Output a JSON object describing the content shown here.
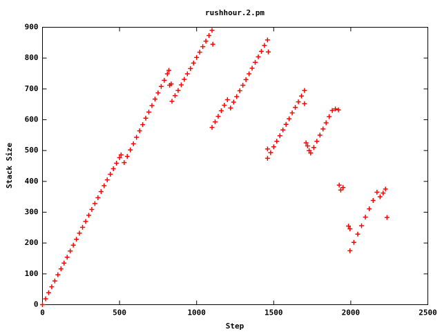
{
  "chart_data": {
    "type": "scatter",
    "title": "rushhour.2.pm",
    "x_label": "Step",
    "y_label": "Stack Size",
    "color": "#ff0000",
    "xlim": [
      0,
      2500
    ],
    "xticks": [
      0,
      500,
      1000,
      1500,
      2000,
      2500
    ],
    "ylim": [
      0,
      900
    ],
    "yticks": [
      0,
      100,
      200,
      300,
      400,
      500,
      600,
      700,
      800,
      900
    ],
    "x": [
      0,
      20,
      40,
      60,
      80,
      100,
      120,
      140,
      160,
      180,
      200,
      220,
      240,
      260,
      280,
      300,
      320,
      340,
      360,
      380,
      400,
      420,
      440,
      460,
      480,
      500,
      510,
      530,
      550,
      570,
      590,
      610,
      630,
      650,
      670,
      690,
      710,
      730,
      750,
      770,
      790,
      810,
      820,
      825,
      835,
      840,
      860,
      880,
      900,
      920,
      940,
      960,
      980,
      1000,
      1020,
      1040,
      1060,
      1080,
      1100,
      1105,
      1100,
      1120,
      1140,
      1160,
      1180,
      1200,
      1220,
      1240,
      1260,
      1280,
      1300,
      1320,
      1340,
      1360,
      1380,
      1400,
      1420,
      1440,
      1460,
      1465,
      1460,
      1460,
      1480,
      1500,
      1520,
      1540,
      1560,
      1580,
      1600,
      1620,
      1640,
      1660,
      1680,
      1700,
      1700,
      1710,
      1720,
      1730,
      1740,
      1760,
      1780,
      1800,
      1820,
      1840,
      1860,
      1880,
      1900,
      1920,
      1925,
      1935,
      1950,
      1985,
      1995,
      1995,
      2020,
      2045,
      2070,
      2095,
      2120,
      2145,
      2170,
      2190,
      2210,
      2225,
      2235
    ],
    "values": [
      0,
      19,
      39,
      58,
      77,
      97,
      116,
      135,
      154,
      174,
      193,
      212,
      232,
      251,
      270,
      290,
      309,
      328,
      347,
      367,
      386,
      405,
      423,
      441,
      459,
      477,
      486,
      461,
      481,
      502,
      522,
      543,
      564,
      584,
      605,
      625,
      646,
      667,
      687,
      708,
      728,
      749,
      760,
      712,
      716,
      660,
      678,
      695,
      713,
      731,
      749,
      766,
      784,
      802,
      819,
      837,
      855,
      873,
      890,
      845,
      575,
      593,
      611,
      629,
      647,
      665,
      638,
      657,
      675,
      694,
      712,
      730,
      749,
      767,
      786,
      804,
      822,
      841,
      859,
      820,
      505,
      475,
      493,
      512,
      530,
      548,
      567,
      585,
      603,
      622,
      640,
      658,
      677,
      695,
      652,
      525,
      515,
      500,
      492,
      510,
      530,
      550,
      570,
      590,
      610,
      630,
      635,
      632,
      388,
      372,
      380,
      255,
      246,
      175,
      202,
      229,
      256,
      284,
      311,
      338,
      365,
      350,
      362,
      375,
      283
    ]
  }
}
